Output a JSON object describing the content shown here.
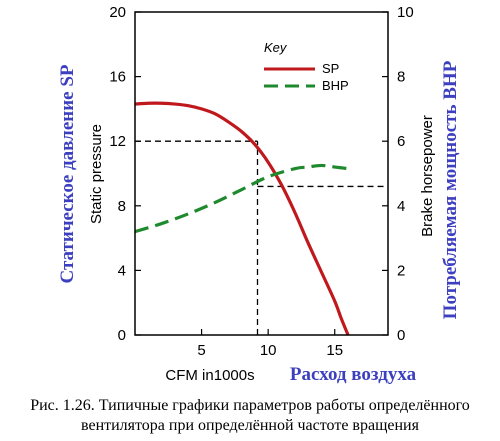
{
  "chart_data": {
    "type": "line",
    "xlabel": "CFM in1000s",
    "xlabel_ru": "Расход воздуха",
    "ylabel_left": "Static pressure",
    "ylabel_left_ru": "Статическое давление SP",
    "ylabel_right": "Brake horsepower",
    "ylabel_right_ru": "Потребляемая мощность BHP",
    "xlim": [
      0,
      19
    ],
    "ylim_left": [
      0,
      20
    ],
    "ylim_right": [
      0,
      10
    ],
    "x_ticks": [
      5,
      10,
      15
    ],
    "y_left_ticks": [
      0,
      4,
      8,
      12,
      16,
      20
    ],
    "y_right_ticks": [
      0,
      2,
      4,
      6,
      8,
      10
    ],
    "legend": {
      "title": "Key",
      "placement": "top-right"
    },
    "series": [
      {
        "name": "SP",
        "axis": "left",
        "color": "#c0191d",
        "style": "solid",
        "x": [
          0,
          1,
          2,
          3,
          4,
          5,
          6,
          7,
          8,
          9,
          10,
          11,
          12,
          13,
          14,
          15,
          15.5,
          16
        ],
        "y": [
          14.3,
          14.35,
          14.35,
          14.3,
          14.2,
          14.0,
          13.7,
          13.2,
          12.6,
          11.8,
          10.7,
          9.3,
          7.6,
          5.7,
          3.9,
          2.1,
          1.0,
          0
        ]
      },
      {
        "name": "BHP",
        "axis": "right",
        "color": "#1f8a2d",
        "style": "dashed",
        "x": [
          0,
          2,
          4,
          6,
          8,
          10,
          12,
          13,
          14,
          15,
          16
        ],
        "y": [
          3.2,
          3.45,
          3.75,
          4.1,
          4.5,
          4.9,
          5.15,
          5.2,
          5.25,
          5.2,
          5.15
        ]
      }
    ],
    "reference_lines": [
      {
        "kind": "horizontal",
        "axis": "left",
        "y": 12,
        "x_from": 0,
        "x_to": 9.2
      },
      {
        "kind": "vertical",
        "x": 9.2,
        "y_from": 0,
        "y_to": 12
      },
      {
        "kind": "horizontal",
        "axis": "right",
        "y": 4.6,
        "x_from": 9.2,
        "x_to": 19
      }
    ]
  },
  "caption": {
    "line1": "Рис. 1.26. Типичные графики параметров работы определённого",
    "line2": "вентилятора при определённой частоте вращения"
  }
}
